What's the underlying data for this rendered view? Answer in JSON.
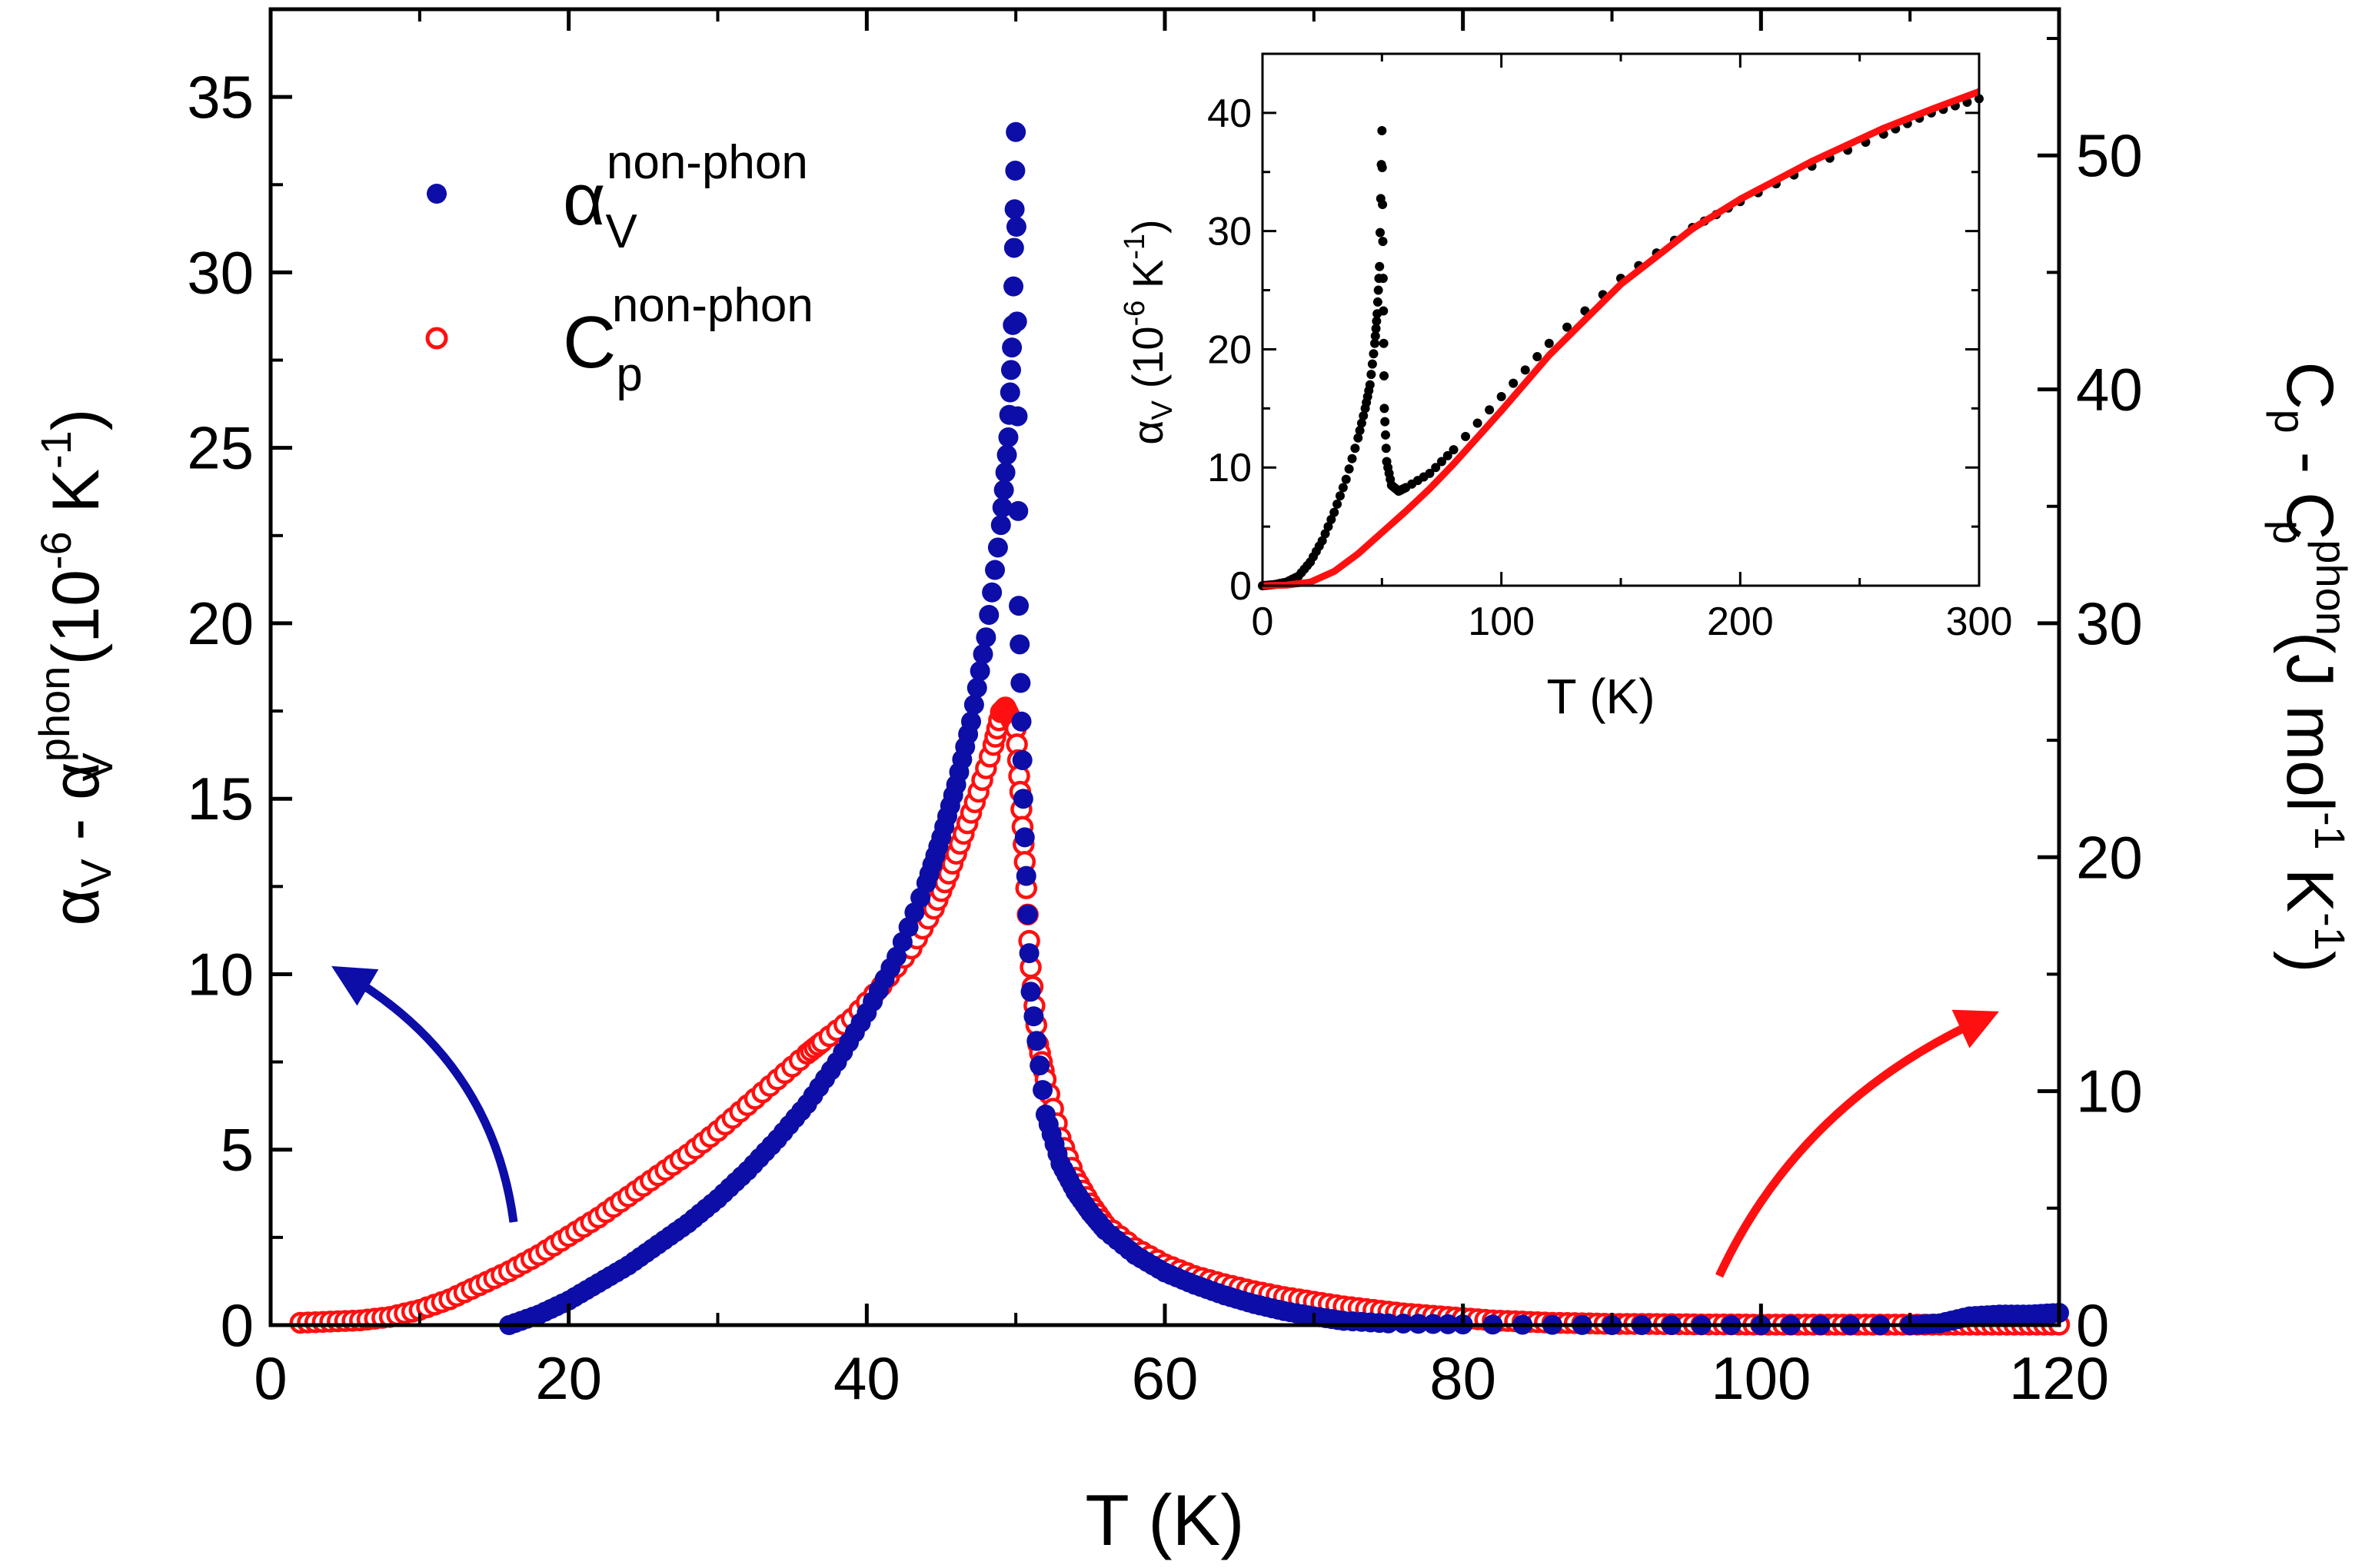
{
  "colors": {
    "blue": "#0d0da8",
    "red": "#ff1010",
    "black": "#000000"
  },
  "chart_data": [
    {
      "type": "scatter",
      "xlabel": "T (K)",
      "ylabel_left": {
        "base": "α",
        "sub1": "V",
        "mid": " - α",
        "sup2": "phon",
        "sub2": "V",
        "tail": " (10",
        "exp": "-6",
        "unit": " K",
        "exp2": "-1",
        "close": ")"
      },
      "ylabel_right": {
        "base": "C",
        "sub1": "p",
        "mid": " - C",
        "sup2": "phon",
        "sub2": "p",
        "tail": " (J mol",
        "exp": "-1",
        "unit": " K",
        "exp2": "-1",
        "close": ")"
      },
      "xlim": [
        0,
        120
      ],
      "ylim_left": [
        0,
        37.5
      ],
      "ylim_right": [
        0,
        56.25
      ],
      "xticks": [
        "0",
        "20",
        "40",
        "60",
        "80",
        "100",
        "120"
      ],
      "yticks_left": [
        "0",
        "5",
        "10",
        "15",
        "20",
        "25",
        "30",
        "35"
      ],
      "yticks_right": [
        "0",
        "10",
        "20",
        "30",
        "40",
        "50"
      ],
      "legend": [
        {
          "base": "α",
          "sub": "V",
          "sup": "non-phon",
          "marker": "filled-circle",
          "color": "#0d0da8"
        },
        {
          "base": "C",
          "sub": "p",
          "sup": "non-phon",
          "marker": "open-circle",
          "color": "#ff1010"
        }
      ],
      "legend_position": "top-left",
      "series": [
        {
          "axis": "left",
          "marker": "filled-circle",
          "color": "#0d0da8",
          "x": [
            16,
            18,
            20,
            22,
            24,
            26,
            28,
            30,
            32,
            34,
            36,
            38,
            40,
            42,
            44,
            45,
            46,
            47,
            48,
            49,
            49.5,
            49.8,
            50,
            50.2,
            50.5,
            51,
            52,
            53,
            54,
            55,
            56,
            58,
            60,
            62,
            64,
            66,
            68,
            70,
            72,
            75,
            80,
            90,
            100,
            110,
            112,
            114,
            116,
            118,
            120
          ],
          "y": [
            0.0,
            0.3,
            0.7,
            1.2,
            1.7,
            2.3,
            2.9,
            3.6,
            4.4,
            5.3,
            6.3,
            7.5,
            8.9,
            10.5,
            12.6,
            13.9,
            15.4,
            17.2,
            19.6,
            22.8,
            25.3,
            28.5,
            34.0,
            20.5,
            15.0,
            9.5,
            6.0,
            4.6,
            3.8,
            3.2,
            2.7,
            2.0,
            1.5,
            1.15,
            0.85,
            0.6,
            0.4,
            0.25,
            0.12,
            0.05,
            0.02,
            0.0,
            0.0,
            0.0,
            0.05,
            0.25,
            0.3,
            0.3,
            0.35
          ]
        },
        {
          "axis": "right",
          "marker": "open-circle",
          "color": "#ff1010",
          "x": [
            2,
            4,
            6,
            8,
            10,
            12,
            14,
            16,
            18,
            20,
            22,
            24,
            26,
            28,
            30,
            32,
            34,
            36,
            37,
            39,
            41,
            43,
            44.5,
            45.5,
            46.5,
            47.5,
            48.5,
            49,
            49.3,
            49.6,
            50,
            50.3,
            50.6,
            51,
            51.5,
            52,
            53,
            54,
            55,
            56,
            58,
            60,
            62,
            64,
            66,
            68,
            70,
            72,
            74,
            76,
            78,
            80,
            82,
            84,
            86,
            88,
            90,
            92,
            94,
            96,
            98,
            100,
            102,
            104,
            106,
            108,
            110,
            112,
            114,
            116,
            118,
            120
          ],
          "y": [
            0.1,
            0.15,
            0.2,
            0.35,
            0.65,
            1.1,
            1.7,
            2.3,
            3.0,
            3.8,
            4.6,
            5.5,
            6.4,
            7.3,
            8.3,
            9.4,
            10.5,
            11.6,
            12.1,
            13.1,
            14.5,
            16.1,
            17.8,
            19.3,
            21.0,
            22.8,
            24.8,
            26.2,
            26.4,
            26.0,
            25.5,
            22.8,
            19.8,
            15.3,
            12.0,
            10.5,
            8.0,
            6.3,
            5.2,
            4.3,
            3.3,
            2.6,
            2.1,
            1.75,
            1.45,
            1.2,
            1.0,
            0.8,
            0.65,
            0.5,
            0.4,
            0.3,
            0.2,
            0.15,
            0.1,
            0.08,
            0.05,
            0.05,
            0.04,
            0.03,
            0.03,
            0.02,
            0.02,
            0.02,
            0.02,
            0.02,
            0.02,
            0.02,
            0.02,
            0.02,
            0.02,
            0.02
          ]
        }
      ]
    },
    {
      "type": "scatter",
      "xlabel": "T (K)",
      "ylabel": {
        "base": "α",
        "sub1": "V",
        "tail": " (10",
        "exp": "-6",
        "unit": " K",
        "exp2": "-1",
        "close": ")"
      },
      "xlim": [
        0,
        300
      ],
      "ylim": [
        0,
        45
      ],
      "xticks": [
        "0",
        "100",
        "200",
        "300"
      ],
      "yticks": [
        "0",
        "10",
        "20",
        "30",
        "40"
      ],
      "series": [
        {
          "color": "#000000",
          "marker": "filled-circle",
          "x": [
            0,
            5,
            10,
            15,
            20,
            25,
            30,
            35,
            40,
            43,
            45,
            47,
            48,
            49,
            50,
            50.5,
            51,
            52,
            54,
            57,
            60,
            70,
            80,
            100,
            120,
            150,
            180,
            200,
            230,
            260,
            280,
            300
          ],
          "y": [
            0.0,
            0.1,
            0.3,
            0.8,
            2.0,
            3.8,
            6.2,
            9.0,
            12.5,
            15.0,
            17.0,
            20.5,
            23.0,
            27.0,
            38.5,
            26.0,
            15.0,
            10.5,
            8.5,
            8.0,
            8.3,
            9.5,
            11.5,
            16.0,
            20.5,
            26.0,
            30.3,
            32.5,
            35.5,
            38.2,
            40.0,
            41.2
          ]
        },
        {
          "color": "#ff1010",
          "marker": "line",
          "x": [
            0,
            10,
            20,
            30,
            40,
            50,
            60,
            70,
            80,
            100,
            120,
            150,
            180,
            200,
            230,
            260,
            280,
            300
          ],
          "y": [
            0.0,
            0.05,
            0.3,
            1.2,
            2.7,
            4.5,
            6.3,
            8.2,
            10.3,
            14.8,
            19.5,
            25.5,
            30.2,
            32.7,
            35.9,
            38.7,
            40.3,
            41.8
          ]
        }
      ]
    }
  ]
}
